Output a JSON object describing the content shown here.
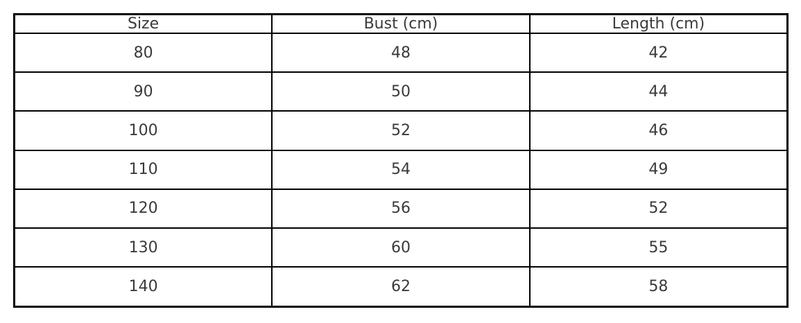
{
  "table": {
    "headers": [
      "Size",
      "Bust (cm)",
      "Length (cm)"
    ],
    "rows": [
      [
        "80",
        "48",
        "42"
      ],
      [
        "90",
        "50",
        "44"
      ],
      [
        "100",
        "52",
        "46"
      ],
      [
        "110",
        "54",
        "49"
      ],
      [
        "120",
        "56",
        "52"
      ],
      [
        "130",
        "60",
        "55"
      ],
      [
        "140",
        "62",
        "58"
      ]
    ]
  },
  "chart_data": {
    "type": "table",
    "columns": [
      "Size",
      "Bust (cm)",
      "Length (cm)"
    ],
    "rows": [
      [
        80,
        48,
        42
      ],
      [
        90,
        50,
        44
      ],
      [
        100,
        52,
        46
      ],
      [
        110,
        54,
        49
      ],
      [
        120,
        56,
        52
      ],
      [
        130,
        60,
        55
      ],
      [
        140,
        62,
        58
      ]
    ]
  },
  "colors": {
    "border": "#000000",
    "text": "#3a3a3a",
    "background": "#ffffff"
  }
}
